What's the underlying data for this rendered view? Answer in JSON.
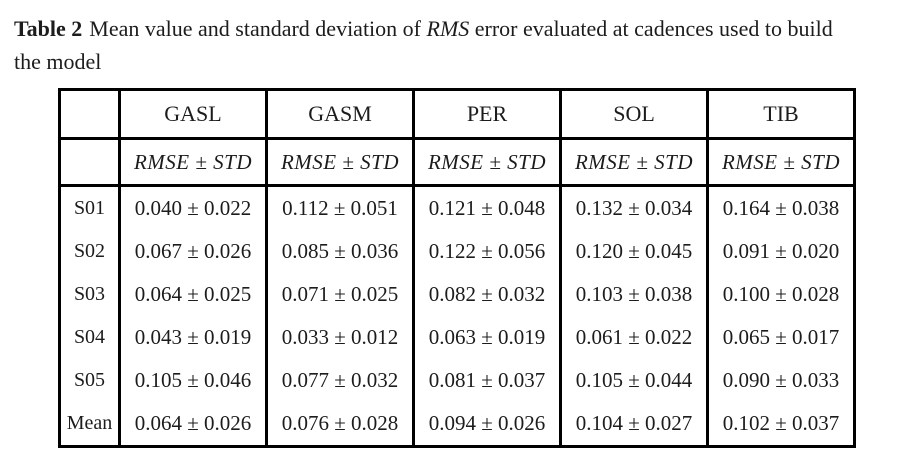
{
  "caption": {
    "label": "Table 2",
    "body_before_emphasis": "Mean value and standard deviation of",
    "emphasis": "RMS",
    "body_after_emphasis": "error evaluated at cadences used to build",
    "line2": "the model"
  },
  "table": {
    "columns": [
      "GASL",
      "GASM",
      "PER",
      "SOL",
      "TIB"
    ],
    "subheader_label": "RMSE ± STD",
    "rows": [
      {
        "label": "S01",
        "values": [
          "0.040 ± 0.022",
          "0.112 ± 0.051",
          "0.121 ± 0.048",
          "0.132 ± 0.034",
          "0.164 ± 0.038"
        ]
      },
      {
        "label": "S02",
        "values": [
          "0.067 ± 0.026",
          "0.085 ± 0.036",
          "0.122 ± 0.056",
          "0.120 ± 0.045",
          "0.091 ± 0.020"
        ]
      },
      {
        "label": "S03",
        "values": [
          "0.064 ± 0.025",
          "0.071 ± 0.025",
          "0.082 ± 0.032",
          "0.103 ± 0.038",
          "0.100 ± 0.028"
        ]
      },
      {
        "label": "S04",
        "values": [
          "0.043 ± 0.019",
          "0.033 ± 0.012",
          "0.063 ± 0.019",
          "0.061 ± 0.022",
          "0.065 ± 0.017"
        ]
      },
      {
        "label": "S05",
        "values": [
          "0.105 ± 0.046",
          "0.077 ± 0.032",
          "0.081 ± 0.037",
          "0.105 ± 0.044",
          "0.090 ± 0.033"
        ]
      },
      {
        "label": "Mean",
        "values": [
          "0.064 ± 0.026",
          "0.076 ± 0.028",
          "0.094 ± 0.026",
          "0.104 ± 0.027",
          "0.102 ± 0.037"
        ]
      }
    ]
  },
  "colors": {
    "text": "#1c1c1c",
    "border": "#000000",
    "background": "#ffffff"
  }
}
